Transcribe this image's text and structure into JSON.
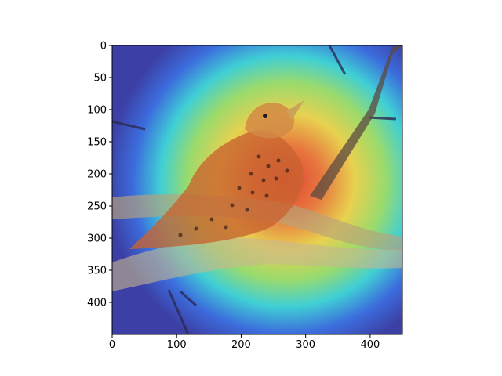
{
  "figure": {
    "image": {
      "subject": "bird perched on branch",
      "overlay": "heatmap"
    }
  },
  "chart_data": {
    "type": "heatmap",
    "title": "",
    "xlabel": "",
    "ylabel": "",
    "xlim": [
      0,
      450
    ],
    "ylim": [
      450,
      0
    ],
    "x_ticks": [
      "0",
      "100",
      "200",
      "300",
      "400"
    ],
    "y_ticks": [
      "0",
      "50",
      "100",
      "150",
      "200",
      "250",
      "300",
      "350",
      "400"
    ],
    "colormap": "jet",
    "grid": false,
    "legend": "none"
  },
  "colors": {
    "frame": "#000000",
    "heat_low": "#3b3fa6",
    "heat_mid": "#2ed1d1",
    "heat_high": "#e23b2a"
  }
}
